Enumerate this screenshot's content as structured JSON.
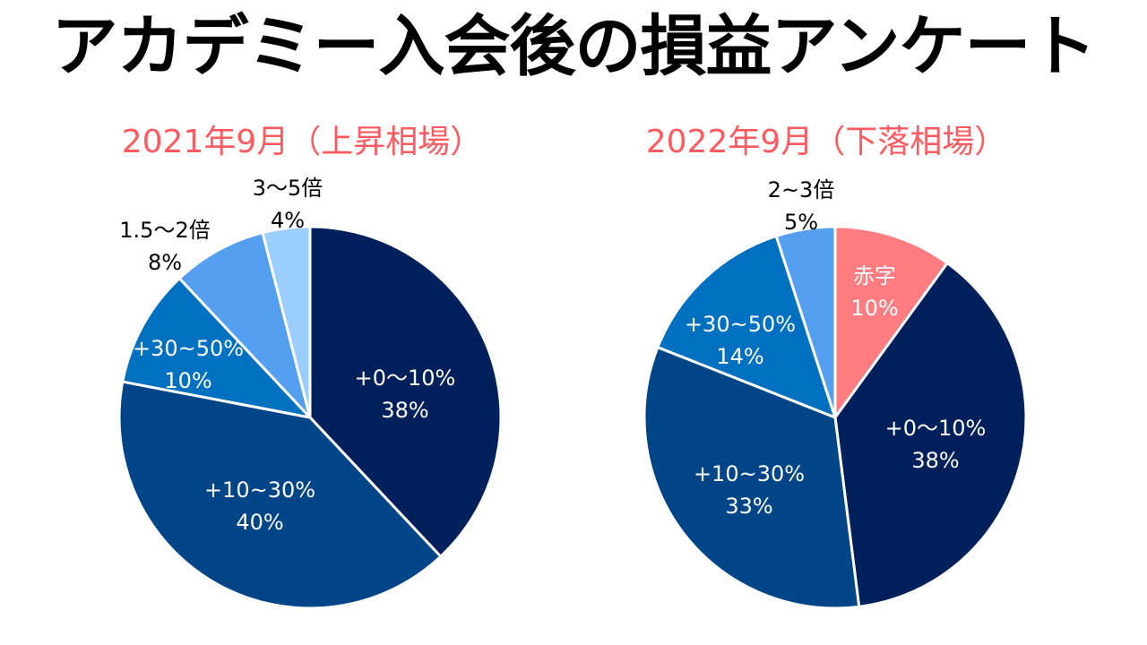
{
  "title": "アカデミー入会後の損益アンケート",
  "colors": {
    "title": "#000000",
    "subtitle": "#ff5a5f",
    "label_dark": "#000000",
    "label_light": "#ffffff",
    "slice_border": "#ffffff"
  },
  "chart_data": [
    {
      "type": "pie",
      "title": "2021年9月（上昇相場）",
      "start_angle_deg": 0,
      "direction": "clockwise",
      "slices": [
        {
          "name": "+0〜10%",
          "value": 38,
          "value_label": "38%",
          "color": "#00205b",
          "label_color": "#ffffff"
        },
        {
          "name": "+10~30%",
          "value": 40,
          "value_label": "40%",
          "color": "#004587",
          "label_color": "#ffffff"
        },
        {
          "name": "+30~50%",
          "value": 10,
          "value_label": "10%",
          "color": "#0070c0",
          "label_color": "#ffffff"
        },
        {
          "name": "1.5〜2倍",
          "value": 8,
          "value_label": "8%",
          "color": "#559ff0",
          "label_color": "#000000"
        },
        {
          "name": "3〜5倍",
          "value": 4,
          "value_label": "4%",
          "color": "#99ceff",
          "label_color": "#000000"
        }
      ]
    },
    {
      "type": "pie",
      "title": "2022年9月（下落相場）",
      "start_angle_deg": 0,
      "direction": "clockwise",
      "slices": [
        {
          "name": "赤字",
          "value": 10,
          "value_label": "10%",
          "color": "#ff7c80",
          "label_color": "#ffffff"
        },
        {
          "name": "+0〜10%",
          "value": 38,
          "value_label": "38%",
          "color": "#00205b",
          "label_color": "#ffffff"
        },
        {
          "name": "+10~30%",
          "value": 33,
          "value_label": "33%",
          "color": "#004587",
          "label_color": "#ffffff"
        },
        {
          "name": "+30~50%",
          "value": 14,
          "value_label": "14%",
          "color": "#0070c0",
          "label_color": "#ffffff"
        },
        {
          "name": "2~3倍",
          "value": 5,
          "value_label": "5%",
          "color": "#559ff0",
          "label_color": "#000000"
        }
      ]
    }
  ]
}
